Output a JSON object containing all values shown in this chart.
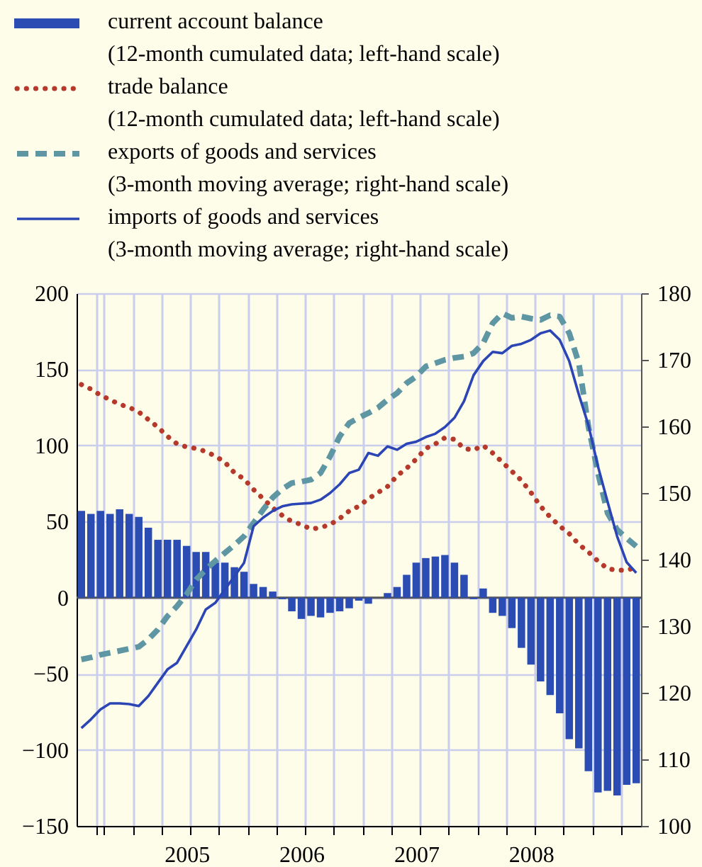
{
  "chart_data": {
    "type": "bar",
    "categories": [
      null,
      null,
      null,
      null,
      null,
      null,
      null,
      null,
      null,
      null,
      null,
      "2005",
      null,
      null,
      null,
      null,
      null,
      null,
      null,
      null,
      null,
      null,
      null,
      "2006",
      null,
      null,
      null,
      null,
      null,
      null,
      null,
      null,
      null,
      null,
      null,
      "2007",
      null,
      null,
      null,
      null,
      null,
      null,
      null,
      null,
      null,
      null,
      null,
      "2008",
      null,
      null,
      null,
      null,
      null,
      null,
      null,
      null,
      null,
      null,
      null
    ],
    "series": [
      {
        "name": "current account balance\n(12-month cumulated data; left-hand scale)",
        "color": "#2b4db3",
        "values": [
          57,
          55,
          57,
          55,
          58,
          55,
          53,
          46,
          38,
          38,
          38,
          34,
          30,
          30,
          23,
          23,
          20,
          17,
          9,
          7,
          4,
          -1,
          -9,
          -14,
          -12,
          -13,
          -10,
          -9,
          -7,
          -2,
          -4,
          0,
          3,
          7,
          15,
          23,
          26,
          27,
          28,
          23,
          15,
          -1,
          6,
          -10,
          -12,
          -20,
          -33,
          -44,
          -55,
          -64,
          -76,
          -93,
          -99,
          -114,
          -128,
          -127,
          -130,
          -123,
          -122
        ]
      },
      {
        "name": "trade balance\n(12-month cumulated data; left-hand scale)",
        "type": "line",
        "line_style": "dotted",
        "color": "#b53a2c",
        "values": [
          140,
          137,
          133,
          130,
          127,
          125,
          122,
          117,
          112,
          106,
          101,
          99,
          98,
          96,
          93,
          89,
          82,
          78,
          71,
          65,
          59,
          54,
          50,
          48,
          45,
          46,
          48,
          52,
          57,
          60,
          65,
          69,
          73,
          80,
          85,
          91,
          98,
          101,
          105,
          104,
          98,
          97,
          100,
          95,
          89,
          83,
          77,
          69,
          60,
          53,
          47,
          42,
          35,
          30,
          24,
          19,
          18,
          18,
          20
        ]
      },
      {
        "name": "exports of goods and services\n(3-month moving average; right-hand scale)",
        "type": "line",
        "line_style": "dashed",
        "axis": "y2",
        "color": "#5f96a3",
        "values": [
          125,
          125.3,
          125.7,
          126,
          126.3,
          126.6,
          126.9,
          128,
          129.5,
          131.5,
          133,
          134.8,
          137,
          138.5,
          139.8,
          141,
          142.2,
          143.5,
          145.5,
          147.5,
          149.3,
          150.6,
          151.5,
          151.7,
          152,
          153,
          155.5,
          158.5,
          160.5,
          161.3,
          162,
          162.8,
          164,
          165,
          166.5,
          167.5,
          169,
          169.5,
          170,
          170.3,
          170.5,
          171,
          172.5,
          175.5,
          177,
          176.3,
          176.5,
          176.2,
          176,
          176.7,
          176.5,
          174,
          169.5,
          160,
          153,
          147,
          144.5,
          143.2,
          142
        ]
      },
      {
        "name": "imports of goods and services\n(3-month moving average; right-hand scale)",
        "type": "line",
        "line_style": "solid",
        "axis": "y2",
        "color": "#2b45b5",
        "values": [
          114.7,
          116,
          117.5,
          118.4,
          118.4,
          118.3,
          118,
          119.5,
          121.5,
          123.5,
          124.5,
          127,
          129.5,
          132.5,
          133.5,
          135.5,
          137.5,
          139.5,
          145,
          146.3,
          147.3,
          148,
          148.3,
          148.4,
          148.5,
          149,
          150,
          151.3,
          153,
          153.5,
          156,
          155.6,
          157,
          156.5,
          157.4,
          157.7,
          158.4,
          158.9,
          159.9,
          161.3,
          163.8,
          167.7,
          169.8,
          171.2,
          171,
          172.1,
          172.4,
          173,
          174,
          174.4,
          173,
          169.8,
          164.8,
          160.2,
          154,
          148.7,
          143.5,
          139.6,
          138
        ]
      }
    ],
    "ylim": [
      -150,
      200
    ],
    "yticks": [
      -150,
      -100,
      -50,
      0,
      50,
      100,
      150,
      200
    ],
    "y2lim": [
      100,
      180
    ],
    "y2ticks": [
      100,
      110,
      120,
      130,
      140,
      150,
      160,
      170,
      180
    ],
    "ref_lines": [
      {
        "axis": "y",
        "value": 0,
        "color": "#555555"
      }
    ],
    "grid": true,
    "legend": "top",
    "marker": "none"
  }
}
